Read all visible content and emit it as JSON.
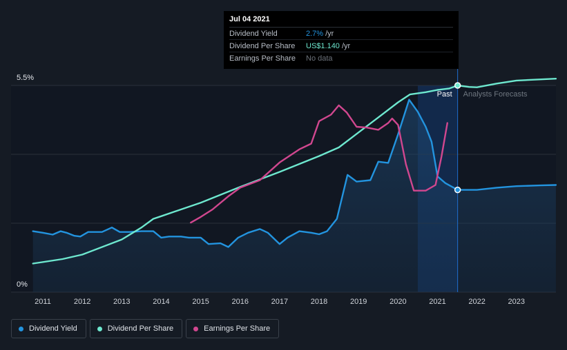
{
  "chart_data": {
    "type": "line",
    "title": "",
    "y_axis": {
      "labels": [
        "5.5%",
        "0%"
      ],
      "min": 0,
      "max": 5.5,
      "unit": "%"
    },
    "x_axis": {
      "ticks": [
        "2011",
        "2012",
        "2013",
        "2014",
        "2015",
        "2016",
        "2017",
        "2018",
        "2019",
        "2020",
        "2021",
        "2022",
        "2023"
      ],
      "range": [
        2010.75,
        2024.0
      ]
    },
    "regions": {
      "past_label": "Past",
      "forecast_label": "Analysts Forecasts",
      "divider_x": 2021.51,
      "highlight_start": 2020.5
    },
    "series": [
      {
        "name": "Dividend Yield",
        "color": "#2394df",
        "area": true,
        "points": [
          [
            2010.75,
            1.62
          ],
          [
            2011.0,
            1.58
          ],
          [
            2011.25,
            1.53
          ],
          [
            2011.45,
            1.62
          ],
          [
            2011.6,
            1.58
          ],
          [
            2011.8,
            1.5
          ],
          [
            2011.95,
            1.48
          ],
          [
            2012.15,
            1.6
          ],
          [
            2012.35,
            1.6
          ],
          [
            2012.5,
            1.6
          ],
          [
            2012.75,
            1.72
          ],
          [
            2012.95,
            1.6
          ],
          [
            2013.2,
            1.6
          ],
          [
            2013.5,
            1.62
          ],
          [
            2013.8,
            1.62
          ],
          [
            2014.0,
            1.45
          ],
          [
            2014.2,
            1.48
          ],
          [
            2014.5,
            1.48
          ],
          [
            2014.7,
            1.45
          ],
          [
            2015.0,
            1.45
          ],
          [
            2015.2,
            1.28
          ],
          [
            2015.5,
            1.3
          ],
          [
            2015.7,
            1.2
          ],
          [
            2015.95,
            1.45
          ],
          [
            2016.2,
            1.58
          ],
          [
            2016.5,
            1.68
          ],
          [
            2016.7,
            1.58
          ],
          [
            2017.0,
            1.28
          ],
          [
            2017.2,
            1.45
          ],
          [
            2017.5,
            1.62
          ],
          [
            2017.8,
            1.58
          ],
          [
            2018.0,
            1.54
          ],
          [
            2018.2,
            1.62
          ],
          [
            2018.45,
            1.95
          ],
          [
            2018.72,
            3.12
          ],
          [
            2018.95,
            2.94
          ],
          [
            2019.3,
            2.98
          ],
          [
            2019.5,
            3.47
          ],
          [
            2019.75,
            3.44
          ],
          [
            2020.0,
            4.2
          ],
          [
            2020.28,
            5.12
          ],
          [
            2020.5,
            4.8
          ],
          [
            2020.7,
            4.4
          ],
          [
            2020.85,
            4.0
          ],
          [
            2021.0,
            3.08
          ],
          [
            2021.2,
            2.9
          ],
          [
            2021.51,
            2.72
          ],
          [
            2022.0,
            2.72
          ],
          [
            2022.5,
            2.78
          ],
          [
            2023.0,
            2.82
          ],
          [
            2023.6,
            2.84
          ],
          [
            2024.0,
            2.85
          ]
        ]
      },
      {
        "name": "Dividend Per Share",
        "color": "#6ee8cf",
        "area": false,
        "points": [
          [
            2010.75,
            0.76
          ],
          [
            2011.5,
            0.88
          ],
          [
            2012.0,
            1.0
          ],
          [
            2013.0,
            1.4
          ],
          [
            2013.5,
            1.72
          ],
          [
            2013.8,
            1.95
          ],
          [
            2014.0,
            2.02
          ],
          [
            2015.0,
            2.38
          ],
          [
            2016.0,
            2.8
          ],
          [
            2017.0,
            3.2
          ],
          [
            2018.0,
            3.62
          ],
          [
            2018.5,
            3.85
          ],
          [
            2019.0,
            4.25
          ],
          [
            2019.5,
            4.65
          ],
          [
            2020.0,
            5.05
          ],
          [
            2020.3,
            5.26
          ],
          [
            2020.7,
            5.32
          ],
          [
            2021.0,
            5.38
          ],
          [
            2021.3,
            5.42
          ],
          [
            2021.51,
            5.5
          ],
          [
            2021.8,
            5.46
          ],
          [
            2022.0,
            5.45
          ],
          [
            2022.5,
            5.55
          ],
          [
            2023.0,
            5.63
          ],
          [
            2024.0,
            5.68
          ]
        ]
      },
      {
        "name": "Earnings Per Share",
        "color": "#d1478f",
        "area": false,
        "points": [
          [
            2014.75,
            1.85
          ],
          [
            2015.0,
            2.0
          ],
          [
            2015.3,
            2.2
          ],
          [
            2015.7,
            2.55
          ],
          [
            2016.0,
            2.78
          ],
          [
            2016.5,
            2.98
          ],
          [
            2017.0,
            3.45
          ],
          [
            2017.5,
            3.8
          ],
          [
            2017.8,
            3.95
          ],
          [
            2018.0,
            4.55
          ],
          [
            2018.3,
            4.72
          ],
          [
            2018.5,
            4.97
          ],
          [
            2018.7,
            4.78
          ],
          [
            2018.95,
            4.4
          ],
          [
            2019.2,
            4.38
          ],
          [
            2019.5,
            4.32
          ],
          [
            2019.75,
            4.5
          ],
          [
            2019.85,
            4.62
          ],
          [
            2020.0,
            4.45
          ],
          [
            2020.2,
            3.4
          ],
          [
            2020.4,
            2.7
          ],
          [
            2020.7,
            2.7
          ],
          [
            2020.95,
            2.85
          ],
          [
            2021.1,
            3.6
          ],
          [
            2021.25,
            4.5
          ]
        ]
      }
    ],
    "markers": [
      {
        "series": "Dividend Yield",
        "x": 2021.51,
        "y": 2.72
      },
      {
        "series": "Dividend Per Share",
        "x": 2021.51,
        "y": 5.5
      }
    ]
  },
  "tooltip": {
    "date": "Jul 04 2021",
    "rows": [
      {
        "label": "Dividend Yield",
        "value": "2.7%",
        "unit": "/yr",
        "color": "#2394df"
      },
      {
        "label": "Dividend Per Share",
        "value": "US$1.140",
        "unit": "/yr",
        "color": "#6ee8cf"
      },
      {
        "label": "Earnings Per Share",
        "value": "No data",
        "unit": "",
        "color": "#6c727b"
      }
    ]
  },
  "legend": [
    {
      "label": "Dividend Yield",
      "color": "#2394df"
    },
    {
      "label": "Dividend Per Share",
      "color": "#6ee8cf"
    },
    {
      "label": "Earnings Per Share",
      "color": "#d1478f"
    }
  ]
}
